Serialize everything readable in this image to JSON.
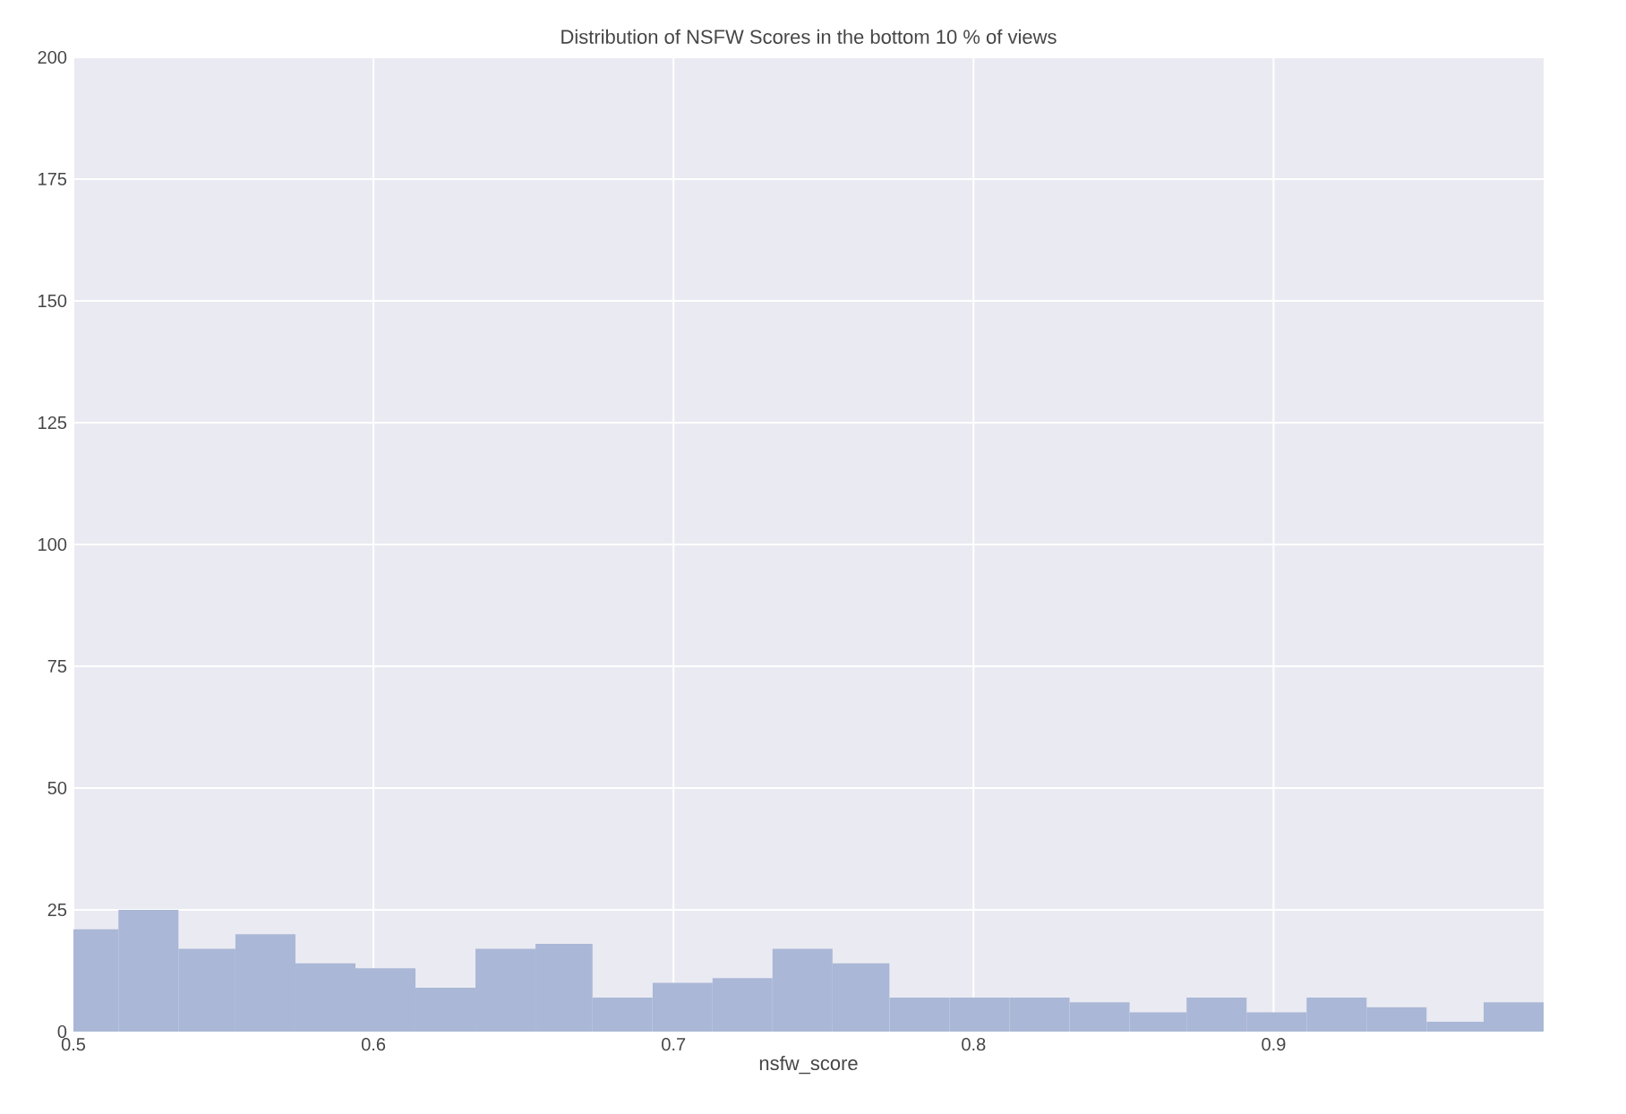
{
  "chart_data": {
    "type": "histogram",
    "title": "Distribution of NSFW Scores in the bottom 10 % of views",
    "xlabel": "nsfw_score",
    "bins": [
      0.5,
      0.515,
      0.535,
      0.554,
      0.574,
      0.594,
      0.614,
      0.634,
      0.654,
      0.673,
      0.693,
      0.713,
      0.733,
      0.753,
      0.772,
      0.792,
      0.812,
      0.832,
      0.852,
      0.871,
      0.891,
      0.911,
      0.931,
      0.951,
      0.97,
      0.99
    ],
    "values": [
      21,
      25,
      17,
      20,
      14,
      13,
      9,
      17,
      18,
      7,
      10,
      11,
      17,
      14,
      7,
      7,
      7,
      6,
      4,
      7,
      4,
      7,
      5,
      2,
      6
    ],
    "color": "#aab7d6",
    "xlim": [
      0.5,
      0.99
    ],
    "xticks": [
      0.5,
      0.6,
      0.7,
      0.8,
      0.9
    ],
    "ylim": [
      0,
      200
    ],
    "yticks": [
      0,
      25,
      50,
      75,
      100,
      125,
      150,
      175,
      200
    ],
    "grid": true
  }
}
